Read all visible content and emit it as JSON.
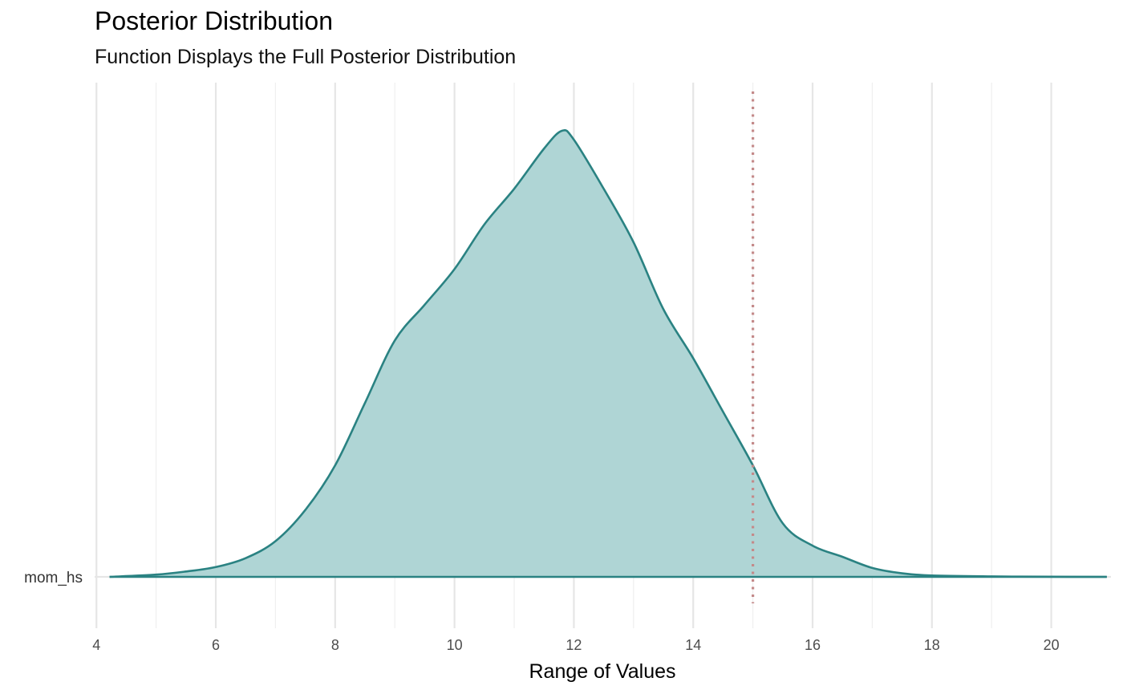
{
  "chart_data": {
    "type": "area",
    "title": "Posterior Distribution",
    "subtitle": "Function Displays the Full Posterior Distribution",
    "xlabel": "Range of Values",
    "ylabel": "",
    "xlim": [
      3.97,
      21.0
    ],
    "x_ticks": [
      4,
      6,
      8,
      10,
      12,
      14,
      16,
      18,
      20
    ],
    "x_tick_labels": [
      "4",
      "6",
      "8",
      "10",
      "12",
      "14",
      "16",
      "18",
      "20"
    ],
    "categories": [
      "mom_hs"
    ],
    "reference_line": {
      "x": 15,
      "style": "dotted",
      "color": "#c48a8a"
    },
    "series": [
      {
        "name": "mom_hs",
        "fill": "#afd5d5",
        "stroke": "#2a8282",
        "x": [
          4.22,
          5.0,
          5.5,
          6.0,
          6.5,
          7.0,
          7.5,
          8.0,
          8.5,
          9.0,
          9.5,
          10.0,
          10.5,
          11.0,
          11.5,
          11.8,
          12.0,
          12.5,
          13.0,
          13.5,
          14.0,
          14.5,
          15.0,
          15.5,
          16.0,
          16.5,
          17.0,
          17.5,
          18.0,
          19.0,
          20.0,
          20.93
        ],
        "density": [
          0.0,
          0.005,
          0.012,
          0.022,
          0.042,
          0.08,
          0.15,
          0.25,
          0.39,
          0.53,
          0.61,
          0.69,
          0.79,
          0.87,
          0.96,
          1.0,
          0.98,
          0.87,
          0.75,
          0.6,
          0.49,
          0.37,
          0.25,
          0.12,
          0.07,
          0.045,
          0.02,
          0.008,
          0.003,
          0.001,
          0.0003,
          0.0
        ]
      }
    ]
  }
}
